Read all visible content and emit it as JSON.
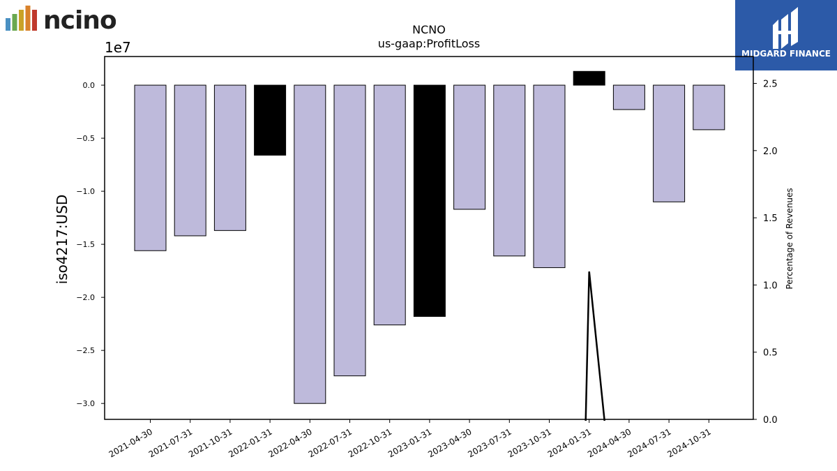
{
  "brand": {
    "left_logo_text": "ncino",
    "right_logo_text": "MIDGARD FINANCE",
    "right_logo_bg": "#2c5aa8",
    "left_logo_bar_colors": [
      "#4a90c2",
      "#6aa84f",
      "#c9a227",
      "#d9822b",
      "#c0392b"
    ]
  },
  "chart_data": {
    "type": "bar",
    "title": "NCNO",
    "subtitle": "us-gaap:ProfitLoss",
    "ylabel": "iso4217:USD",
    "y2label": "Percentage of Revenues",
    "y_exponent_label": "1e7",
    "y_scale": 10000000,
    "ylim": [
      -31500000,
      2700000
    ],
    "y2lim": [
      0.0,
      2.7
    ],
    "yticks": [
      0.0,
      -0.5,
      -1.0,
      -1.5,
      -2.0,
      -2.5,
      -3.0
    ],
    "ytick_labels": [
      "0.0",
      "−0.5",
      "−1.0",
      "−1.5",
      "−2.0",
      "−2.5",
      "−3.0"
    ],
    "y2ticks": [
      0.0,
      0.5,
      1.0,
      1.5,
      2.0,
      2.5
    ],
    "y2tick_labels": [
      "0.0",
      "0.5",
      "1.0",
      "1.5",
      "2.0",
      "2.5"
    ],
    "categories": [
      "2021-04-30",
      "2021-07-31",
      "2021-10-31",
      "2022-01-31",
      "2022-04-30",
      "2022-07-31",
      "2022-10-31",
      "2023-01-31",
      "2023-04-30",
      "2023-07-31",
      "2023-10-31",
      "2024-01-31",
      "2024-04-30",
      "2024-07-31",
      "2024-10-31"
    ],
    "series": [
      {
        "values": [
          -15600000,
          -14200000,
          -13700000,
          -6600000,
          -30000000,
          -27400000,
          -22600000,
          -21800000,
          -11700000,
          -16100000,
          -17200000,
          1300000,
          -2300000,
          -11000000,
          -4200000
        ],
        "colors": [
          "#bebadb",
          "#bebadb",
          "#bebadb",
          "#000000",
          "#bebadb",
          "#bebadb",
          "#bebadb",
          "#000000",
          "#bebadb",
          "#bebadb",
          "#bebadb",
          "#000000",
          "#bebadb",
          "#bebadb",
          "#bebadb"
        ]
      },
      {
        "type": "line",
        "axis": "right",
        "color": "#000000",
        "points": [
          [
            "2024-01-31",
            1.1
          ]
        ]
      }
    ],
    "grid": false,
    "legend": "none"
  }
}
